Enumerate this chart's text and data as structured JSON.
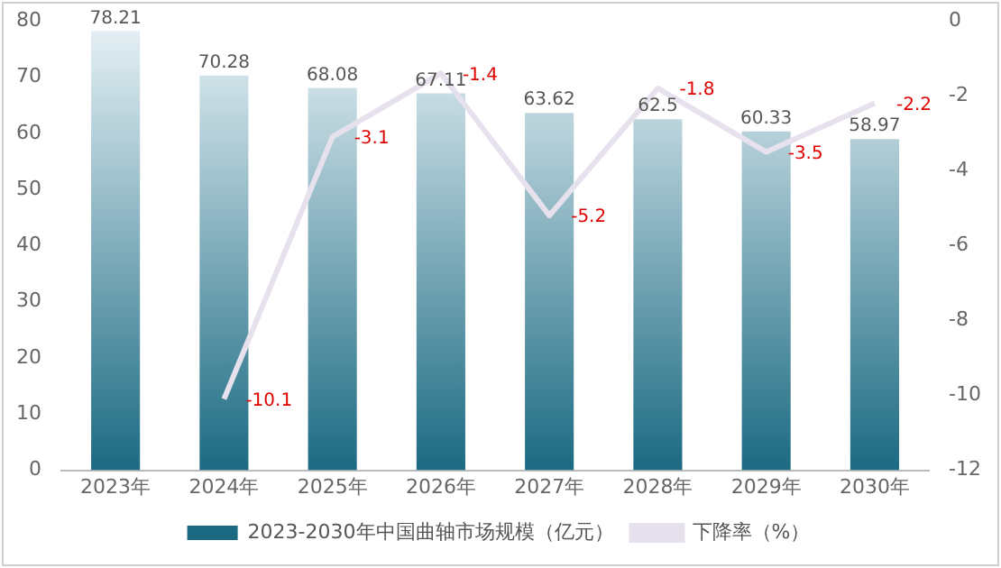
{
  "chart_data": {
    "type": "bar",
    "categories": [
      "2023年",
      "2024年",
      "2025年",
      "2026年",
      "2027年",
      "2028年",
      "2029年",
      "2030年"
    ],
    "series": [
      {
        "name": "2023-2030年中国曲轴市场规模（亿元）",
        "color": "#1b6a82",
        "values": [
          78.21,
          70.28,
          68.08,
          67.11,
          63.62,
          62.5,
          60.33,
          58.97
        ]
      },
      {
        "name": "下降率（%）",
        "type": "line",
        "axis": "y2",
        "color": "#e6e1ec",
        "values": [
          null,
          -10.1,
          -3.1,
          -1.4,
          -5.2,
          -1.8,
          -3.5,
          -2.2
        ]
      }
    ],
    "ylim": [
      0,
      80
    ],
    "yticks": [
      0,
      10,
      20,
      30,
      40,
      50,
      60,
      70,
      80
    ],
    "y2lim": [
      -12,
      0
    ],
    "y2ticks": [
      -12,
      -10,
      -8,
      -6,
      -4,
      -2,
      0
    ],
    "grid": false,
    "legend": "bottom",
    "marker": "none",
    "data_labels": true
  }
}
